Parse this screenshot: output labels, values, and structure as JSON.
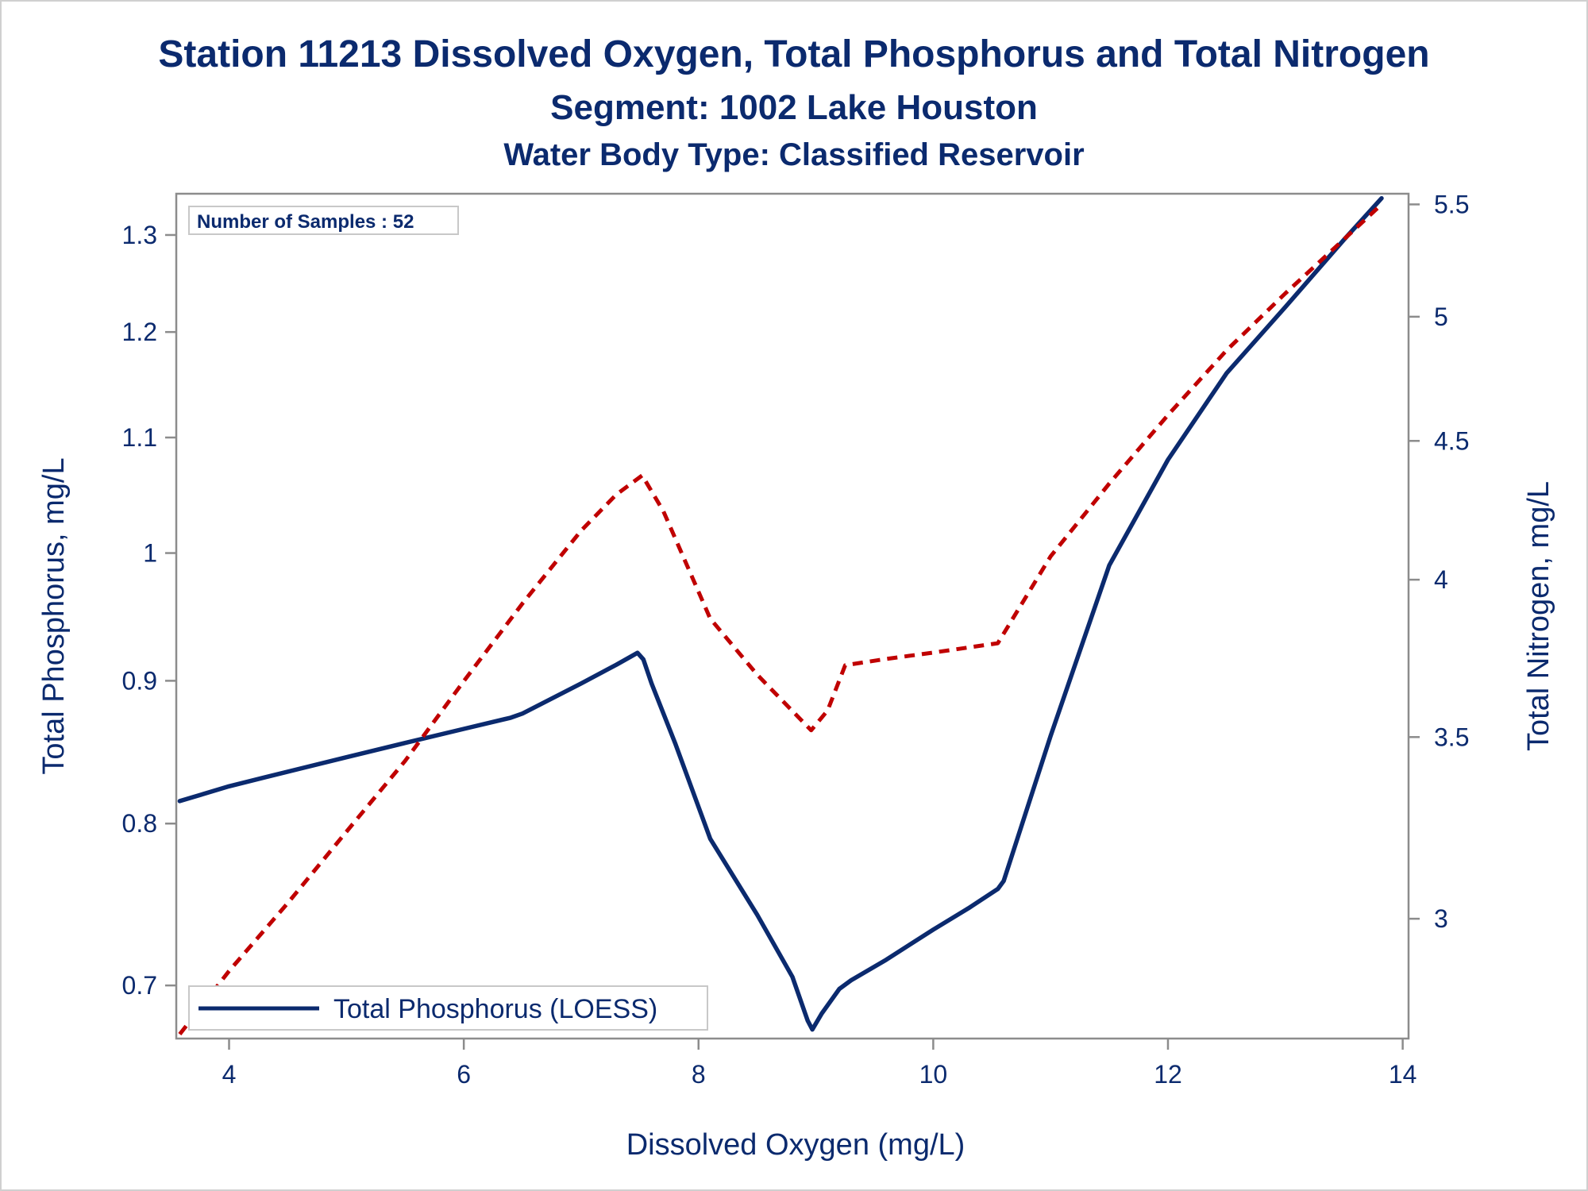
{
  "chart_data": {
    "type": "line",
    "title": "Station 11213  Dissolved Oxygen, Total Phosphorus and Total Nitrogen",
    "subtitle": "Segment: 1002  Lake Houston",
    "subtitle2": "Water Body Type: Classified Reservoir",
    "xlabel": "Dissolved Oxygen (mg/L)",
    "ylabel": "Total Phosphorus, mg/L",
    "y2label": "Total Nitrogen, mg/L",
    "annotation": "Number of Samples : 52",
    "xlim": [
      3.55,
      14.05
    ],
    "ylim": [
      0.67,
      1.345
    ],
    "y_scale": "log",
    "y2lim": [
      2.71,
      5.55
    ],
    "y2_scale": "log",
    "xticks": [
      "4",
      "6",
      "8",
      "10",
      "12",
      "14"
    ],
    "yticks": [
      "0.7",
      "0.8",
      "0.9",
      "1",
      "1.1",
      "1.2",
      "1.3"
    ],
    "y2ticks": [
      "3",
      "3.5",
      "4",
      "4.5",
      "5",
      "5.5"
    ],
    "xtick_values": [
      4,
      6,
      8,
      10,
      12,
      14
    ],
    "ytick_values": [
      0.7,
      0.8,
      0.9,
      1.0,
      1.1,
      1.2,
      1.3
    ],
    "y2tick_values": [
      3,
      3.5,
      4,
      4.5,
      5,
      5.5
    ],
    "legend_position": "bottom-left",
    "series": [
      {
        "name": "Total Phosphorus (LOESS)",
        "axis": "left",
        "color": "#0b2a6e",
        "style": "solid",
        "x": [
          3.58,
          4.0,
          4.3,
          5.0,
          5.5,
          6.0,
          6.4,
          6.5,
          7.0,
          7.3,
          7.48,
          7.53,
          7.6,
          7.8,
          8.1,
          8.5,
          8.8,
          8.93,
          8.97,
          9.05,
          9.2,
          9.3,
          9.6,
          10.0,
          10.3,
          10.55,
          10.6,
          11.0,
          11.5,
          12.0,
          12.5,
          13.0,
          13.5,
          13.82
        ],
        "y": [
          0.815,
          0.825,
          0.831,
          0.845,
          0.855,
          0.865,
          0.873,
          0.876,
          0.898,
          0.912,
          0.921,
          0.916,
          0.898,
          0.855,
          0.79,
          0.742,
          0.705,
          0.68,
          0.675,
          0.684,
          0.698,
          0.703,
          0.715,
          0.733,
          0.746,
          0.758,
          0.763,
          0.86,
          0.99,
          1.08,
          1.16,
          1.225,
          1.295,
          1.34
        ]
      },
      {
        "name": "",
        "axis": "right",
        "color": "#c00000",
        "style": "dashed",
        "x": [
          3.58,
          4.0,
          4.5,
          5.0,
          5.5,
          6.0,
          6.5,
          7.0,
          7.3,
          7.52,
          7.7,
          8.1,
          8.5,
          8.96,
          9.1,
          9.25,
          9.6,
          10.0,
          10.55,
          11.0,
          11.5,
          12.0,
          12.5,
          13.0,
          13.5,
          13.82
        ],
        "y": [
          2.72,
          2.87,
          3.04,
          3.23,
          3.43,
          3.67,
          3.92,
          4.17,
          4.3,
          4.37,
          4.24,
          3.87,
          3.69,
          3.52,
          3.58,
          3.72,
          3.74,
          3.76,
          3.79,
          4.08,
          4.34,
          4.6,
          4.86,
          5.1,
          5.34,
          5.5
        ]
      }
    ]
  }
}
